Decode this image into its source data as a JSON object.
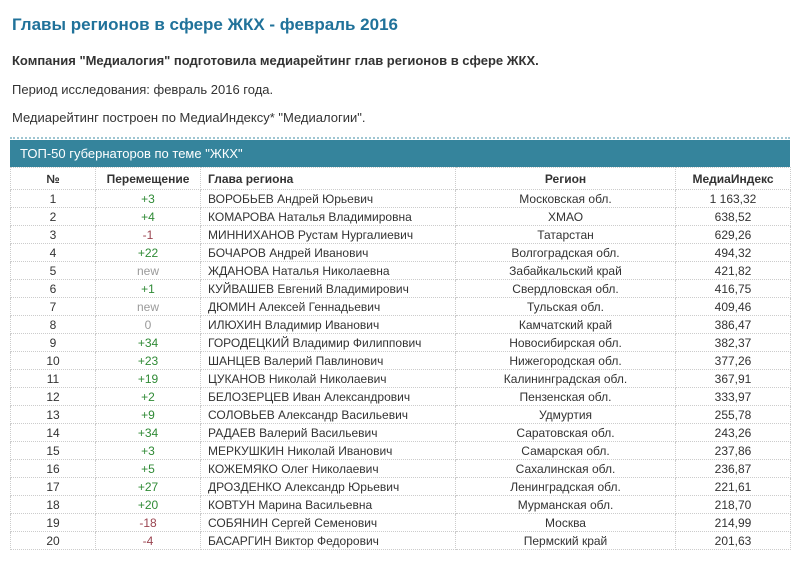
{
  "page": {
    "title": "Главы регионов в сфере ЖКХ - февраль 2016",
    "intro": "Компания \"Медиалогия\" подготовила медиарейтинг глав регионов в сфере ЖКХ.",
    "period": "Период исследования: февраль 2016 года.",
    "method": "Медиарейтинг построен по МедиаИндексу* \"Медиалогии\"."
  },
  "section": {
    "header": "ТОП-50 губернаторов по теме \"ЖКХ\""
  },
  "colors": {
    "title": "#20729a",
    "section_bar": "#35849c",
    "movement_up": "#2f8a35",
    "movement_down": "#9a4450",
    "movement_neutral": "#9a9a9a"
  },
  "table": {
    "columns": [
      "№",
      "Перемещение",
      "Глава региона",
      "Регион",
      "МедиаИндекс"
    ],
    "rows": [
      {
        "n": "1",
        "move": "+3",
        "trend": "up",
        "name": "ВОРОБЬЕВ Андрей Юрьевич",
        "region": "Московская обл.",
        "index": "1 163,32"
      },
      {
        "n": "2",
        "move": "+4",
        "trend": "up",
        "name": "КОМАРОВА Наталья Владимировна",
        "region": "ХМАО",
        "index": "638,52"
      },
      {
        "n": "3",
        "move": "-1",
        "trend": "down",
        "name": "МИННИХАНОВ Рустам Нургалиевич",
        "region": "Татарстан",
        "index": "629,26"
      },
      {
        "n": "4",
        "move": "+22",
        "trend": "up",
        "name": "БОЧАРОВ Андрей Иванович",
        "region": "Волгоградская обл.",
        "index": "494,32"
      },
      {
        "n": "5",
        "move": "new",
        "trend": "neutral",
        "name": "ЖДАНОВА Наталья Николаевна",
        "region": "Забайкальский край",
        "index": "421,82"
      },
      {
        "n": "6",
        "move": "+1",
        "trend": "up",
        "name": "КУЙВАШЕВ Евгений Владимирович",
        "region": "Свердловская обл.",
        "index": "416,75"
      },
      {
        "n": "7",
        "move": "new",
        "trend": "neutral",
        "name": "ДЮМИН Алексей Геннадьевич",
        "region": "Тульская обл.",
        "index": "409,46"
      },
      {
        "n": "8",
        "move": "0",
        "trend": "neutral",
        "name": "ИЛЮХИН Владимир Иванович",
        "region": "Камчатский край",
        "index": "386,47"
      },
      {
        "n": "9",
        "move": "+34",
        "trend": "up",
        "name": "ГОРОДЕЦКИЙ Владимир Филиппович",
        "region": "Новосибирская обл.",
        "index": "382,37"
      },
      {
        "n": "10",
        "move": "+23",
        "trend": "up",
        "name": "ШАНЦЕВ Валерий Павлинович",
        "region": "Нижегородская обл.",
        "index": "377,26"
      },
      {
        "n": "11",
        "move": "+19",
        "trend": "up",
        "name": "ЦУКАНОВ Николай Николаевич",
        "region": "Калининградская обл.",
        "index": "367,91"
      },
      {
        "n": "12",
        "move": "+2",
        "trend": "up",
        "name": "БЕЛОЗЕРЦЕВ Иван Александрович",
        "region": "Пензенская обл.",
        "index": "333,97"
      },
      {
        "n": "13",
        "move": "+9",
        "trend": "up",
        "name": "СОЛОВЬЕВ Александр Васильевич",
        "region": "Удмуртия",
        "index": "255,78"
      },
      {
        "n": "14",
        "move": "+34",
        "trend": "up",
        "name": "РАДАЕВ Валерий Васильевич",
        "region": "Саратовская обл.",
        "index": "243,26"
      },
      {
        "n": "15",
        "move": "+3",
        "trend": "up",
        "name": "МЕРКУШКИН Николай Иванович",
        "region": "Самарская обл.",
        "index": "237,86"
      },
      {
        "n": "16",
        "move": "+5",
        "trend": "up",
        "name": "КОЖЕМЯКО Олег Николаевич",
        "region": "Сахалинская обл.",
        "index": "236,87"
      },
      {
        "n": "17",
        "move": "+27",
        "trend": "up",
        "name": "ДРОЗДЕНКО Александр Юрьевич",
        "region": "Ленинградская обл.",
        "index": "221,61"
      },
      {
        "n": "18",
        "move": "+20",
        "trend": "up",
        "name": "КОВТУН Марина Васильевна",
        "region": "Мурманская обл.",
        "index": "218,70"
      },
      {
        "n": "19",
        "move": "-18",
        "trend": "down",
        "name": "СОБЯНИН Сергей Семенович",
        "region": "Москва",
        "index": "214,99"
      },
      {
        "n": "20",
        "move": "-4",
        "trend": "down",
        "name": "БАСАРГИН Виктор Федорович",
        "region": "Пермский край",
        "index": "201,63"
      }
    ]
  }
}
